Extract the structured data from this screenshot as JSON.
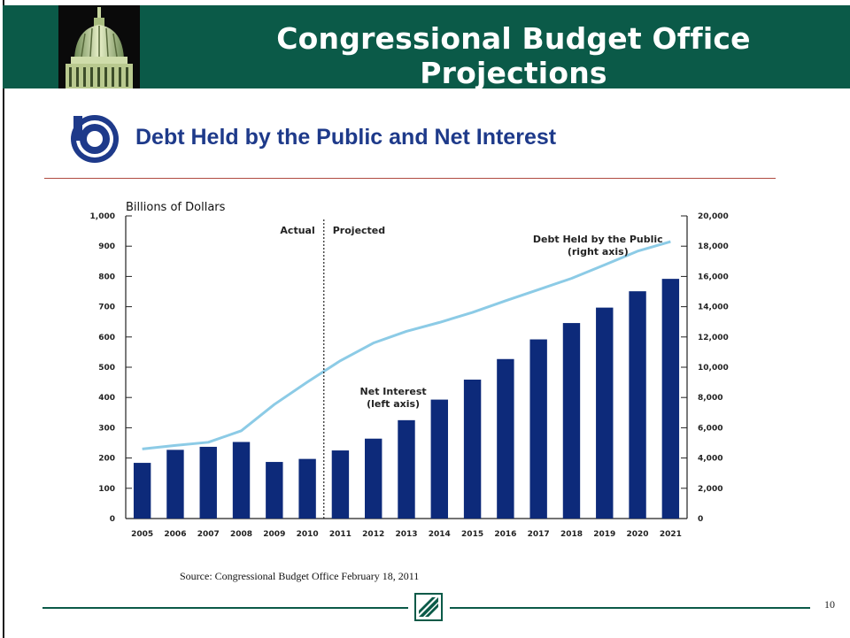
{
  "slide": {
    "title": "Congressional Budget Office Projections",
    "page_number": "10",
    "source": "Source:  Congressional Budget Office February 18, 2011",
    "colors": {
      "header": "#0b5a48",
      "bars": "#0d2a7a",
      "line": "#8ccbe6",
      "heading": "#1e3a8a",
      "rule": "#b04a40"
    },
    "icons": [
      "capitol-dome-icon",
      "cbo-logo-icon",
      "footer-logo-icon"
    ]
  },
  "chart_data": {
    "type": "bar",
    "title": "Debt Held by the Public and Net Interest",
    "ylabel": "Billions of Dollars",
    "categories": [
      "2005",
      "2006",
      "2007",
      "2008",
      "2009",
      "2010",
      "2011",
      "2012",
      "2013",
      "2014",
      "2015",
      "2016",
      "2017",
      "2018",
      "2019",
      "2020",
      "2021"
    ],
    "series": [
      {
        "name": "Net Interest (left axis)",
        "type": "bar",
        "axis": "left",
        "values": [
          184,
          227,
          237,
          253,
          187,
          197,
          225,
          264,
          325,
          393,
          459,
          527,
          592,
          646,
          697,
          751,
          792
        ]
      },
      {
        "name": "Debt Held by the Public (right axis)",
        "type": "line",
        "axis": "right",
        "values": [
          4600,
          4830,
          5040,
          5800,
          7540,
          9020,
          10430,
          11600,
          12370,
          12960,
          13620,
          14390,
          15130,
          15870,
          16760,
          17670,
          18300
        ]
      }
    ],
    "ylim_left": [
      0,
      1000
    ],
    "ylim_right": [
      0,
      20000
    ],
    "yticks_left": [
      "0",
      "100",
      "200",
      "300",
      "400",
      "500",
      "600",
      "700",
      "800",
      "900",
      "1,000"
    ],
    "yticks_right": [
      "0",
      "2,000",
      "4,000",
      "6,000",
      "8,000",
      "10,000",
      "12,000",
      "14,000",
      "16,000",
      "18,000",
      "20,000"
    ],
    "annotations": {
      "actual": "Actual",
      "projected": "Projected",
      "debt_label_1": "Debt Held by the Public",
      "debt_label_2": "(right axis)",
      "interest_label_1": "Net Interest",
      "interest_label_2": "(left axis)"
    },
    "grid": false,
    "legend": "none"
  }
}
